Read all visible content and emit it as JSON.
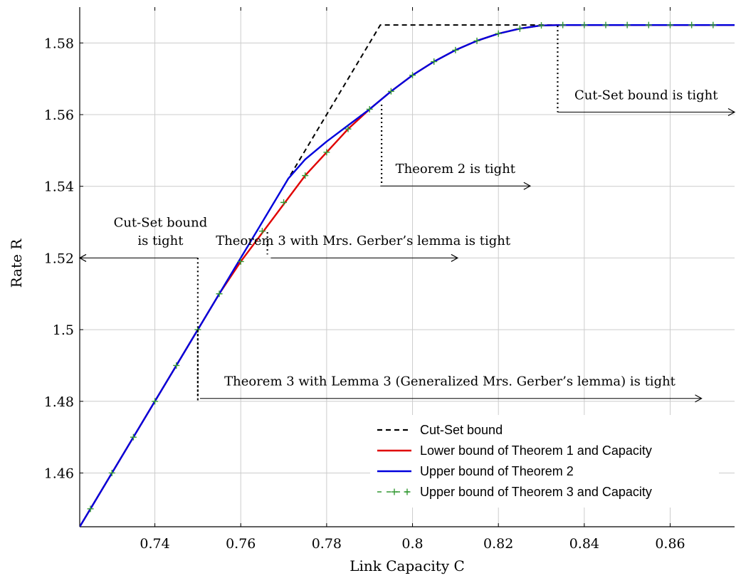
{
  "chart_data": {
    "type": "line",
    "xlabel": "Link Capacity C",
    "ylabel": "Rate R",
    "xlim": [
      0.7225,
      0.875
    ],
    "ylim": [
      1.445,
      1.59
    ],
    "xticks": [
      0.74,
      0.76,
      0.78,
      0.8,
      0.82,
      0.84,
      0.86
    ],
    "xtick_labels": [
      "0.74",
      "0.76",
      "0.78",
      "0.8",
      "0.82",
      "0.84",
      "0.86"
    ],
    "yticks": [
      1.46,
      1.48,
      1.5,
      1.52,
      1.54,
      1.56,
      1.58
    ],
    "ytick_labels": [
      "1.46",
      "1.48",
      "1.5",
      "1.52",
      "1.54",
      "1.56",
      "1.58"
    ],
    "grid": true,
    "legend_position": "bottom-right",
    "series": [
      {
        "name": "Cut-Set bound",
        "color": "#000000",
        "style": "dashed",
        "x": [
          0.7225,
          0.7925,
          0.875
        ],
        "y": [
          1.445,
          1.585,
          1.585
        ]
      },
      {
        "name": "Lower bound of Theorem 1 and Capacity",
        "color": "#e00000",
        "style": "solid",
        "x": [
          0.7225,
          0.725,
          0.73,
          0.735,
          0.74,
          0.745,
          0.75,
          0.755,
          0.76,
          0.765,
          0.77,
          0.775,
          0.78,
          0.785,
          0.79,
          0.795,
          0.8,
          0.805,
          0.81,
          0.815,
          0.82,
          0.825,
          0.83,
          0.835,
          0.84,
          0.845,
          0.85,
          0.855,
          0.86,
          0.865,
          0.87,
          0.875
        ],
        "y": [
          1.445,
          1.45,
          1.46,
          1.47,
          1.48,
          1.49,
          1.5,
          1.51,
          1.519,
          1.527,
          1.535,
          1.543,
          1.5495,
          1.556,
          1.5615,
          1.5665,
          1.571,
          1.5748,
          1.578,
          1.5806,
          1.5826,
          1.584,
          1.5849,
          1.585,
          1.585,
          1.585,
          1.585,
          1.585,
          1.585,
          1.585,
          1.585,
          1.585
        ]
      },
      {
        "name": "Upper bound of Theorem 2",
        "color": "#0000dd",
        "style": "solid",
        "x": [
          0.7225,
          0.725,
          0.73,
          0.735,
          0.74,
          0.745,
          0.75,
          0.755,
          0.76,
          0.765,
          0.7711,
          0.775,
          0.78,
          0.785,
          0.79,
          0.795,
          0.8,
          0.805,
          0.81,
          0.815,
          0.82,
          0.825,
          0.83,
          0.835,
          0.84,
          0.845,
          0.85,
          0.855,
          0.86,
          0.865,
          0.87,
          0.875
        ],
        "y": [
          1.445,
          1.45,
          1.46,
          1.47,
          1.48,
          1.49,
          1.5,
          1.51,
          1.52,
          1.53,
          1.5422,
          1.5475,
          1.5525,
          1.557,
          1.5615,
          1.5665,
          1.571,
          1.5748,
          1.578,
          1.5806,
          1.5826,
          1.584,
          1.5849,
          1.585,
          1.585,
          1.585,
          1.585,
          1.585,
          1.585,
          1.585,
          1.585,
          1.585
        ]
      },
      {
        "name": "Upper bound of Theorem 3 and Capacity",
        "color": "#339933",
        "style": "dashed-plus",
        "x": [
          0.725,
          0.73,
          0.735,
          0.74,
          0.745,
          0.75,
          0.755,
          0.76,
          0.765,
          0.77,
          0.775,
          0.78,
          0.785,
          0.79,
          0.795,
          0.8,
          0.805,
          0.81,
          0.815,
          0.82,
          0.825,
          0.83,
          0.835,
          0.84,
          0.845,
          0.85,
          0.855,
          0.86,
          0.865,
          0.87
        ],
        "y": [
          1.45,
          1.46,
          1.47,
          1.48,
          1.49,
          1.5,
          1.51,
          1.519,
          1.5275,
          1.5355,
          1.543,
          1.5495,
          1.556,
          1.5615,
          1.5665,
          1.571,
          1.5748,
          1.578,
          1.5806,
          1.5826,
          1.584,
          1.5849,
          1.585,
          1.585,
          1.585,
          1.585,
          1.585,
          1.585,
          1.585,
          1.585
        ]
      }
    ],
    "annotations": [
      {
        "lines": [
          "Cut-Set bound",
          "is tight"
        ],
        "x_from": 0.75,
        "x_to": 0.7225,
        "y_arrow": 1.52,
        "text_x": 0.7413,
        "text_y": [
          1.5287,
          1.5237
        ],
        "vline_x": 0.75,
        "vline_y": [
          1.52,
          1.48
        ]
      },
      {
        "lines": [
          "Theorem 3 with Mrs. Gerber’s lemma is tight"
        ],
        "x_from": 0.767,
        "x_to": 0.8105,
        "y_arrow": 1.52,
        "text_x": 0.7885,
        "text_y": [
          1.5237
        ],
        "vline_x": 0.7662,
        "vline_y": [
          1.5272,
          1.521
        ]
      },
      {
        "lines": [
          "Theorem 2 is tight"
        ],
        "x_from": 0.7925,
        "x_to": 0.8274,
        "y_arrow": 1.5401,
        "text_x": 0.81,
        "text_y": [
          1.5437
        ],
        "vline_x": 0.7928,
        "vline_y": [
          1.5628,
          1.5401
        ]
      },
      {
        "lines": [
          "Cut-Set bound is tight"
        ],
        "x_from": 0.8338,
        "x_to": 0.875,
        "y_arrow": 1.5607,
        "text_x": 0.8544,
        "text_y": [
          1.5643
        ],
        "vline_x": 0.8338,
        "vline_y": [
          1.5848,
          1.5607
        ]
      },
      {
        "lines": [
          "Theorem 3 with Lemma 3 (Generalized Mrs. Gerber’s lemma) is tight"
        ],
        "x_from": 0.7505,
        "x_to": 0.8673,
        "y_arrow": 1.4808,
        "text_x": 0.8087,
        "text_y": [
          1.4844
        ],
        "vline_x": 0.75,
        "vline_y": [
          1.5,
          1.4808
        ]
      }
    ]
  }
}
